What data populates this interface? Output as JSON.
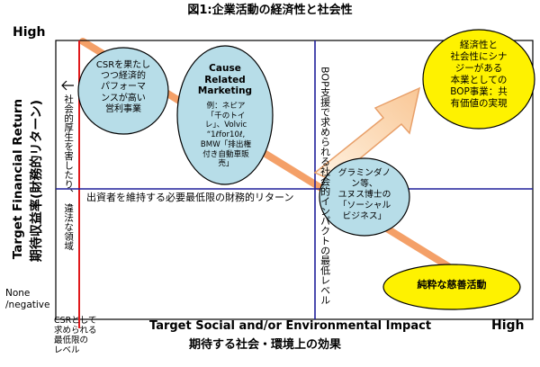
{
  "title": "図1:企業活動の経済性と社会性",
  "y_axis": {
    "label_en": "Target Financial Return",
    "label_jp": "期待収益率(財務的リターン)",
    "high": "High",
    "low": "None\n/negative"
  },
  "x_axis": {
    "label_en": "Target Social and/or Environmental Impact",
    "label_jp": "期待する社会・環境上の効果",
    "high": "High"
  },
  "lines": {
    "csr_min": "CSRとして\n求められる\n最低限の\nレベル",
    "left_arrow_label": "社会的厚生を害したり、",
    "left_arrow_label2": "違法な領域",
    "investor_min": "出資者を維持する必要最低限の財務的リターン",
    "bop": "BOP支援で求められる社会的インパクトの最低レベル"
  },
  "ellipses": {
    "csr": "CSRを果たし\nつつ経済的\nパフォーマ\nンスが高い\n営利事業",
    "crm_title": "Cause\nRelated\nMarketing",
    "crm_body": "例：ネピア\n「千のトイ\nレ」、Volvic\n“1ℓfor10ℓ,\nBMW「排出権\n付き自動車販\n売」",
    "grameen": "グラミンダノ\nン等、\nユヌス博士の\n「ソーシャル\nビジネス」",
    "synergy": "経済性と\n社会性にシナ\nジーがある\n本業としての\nBOP事業：共\n有価値の実現",
    "charity": "純粋な慈善活動"
  },
  "colors": {
    "ellipse_blue": "#b7dde8",
    "ellipse_yellow": "#fef200",
    "arrow_orange": "#f4b183",
    "arrow_fill": "#fce4c8",
    "red_line": "#e0191b",
    "blue_line": "#1f1f9a"
  }
}
